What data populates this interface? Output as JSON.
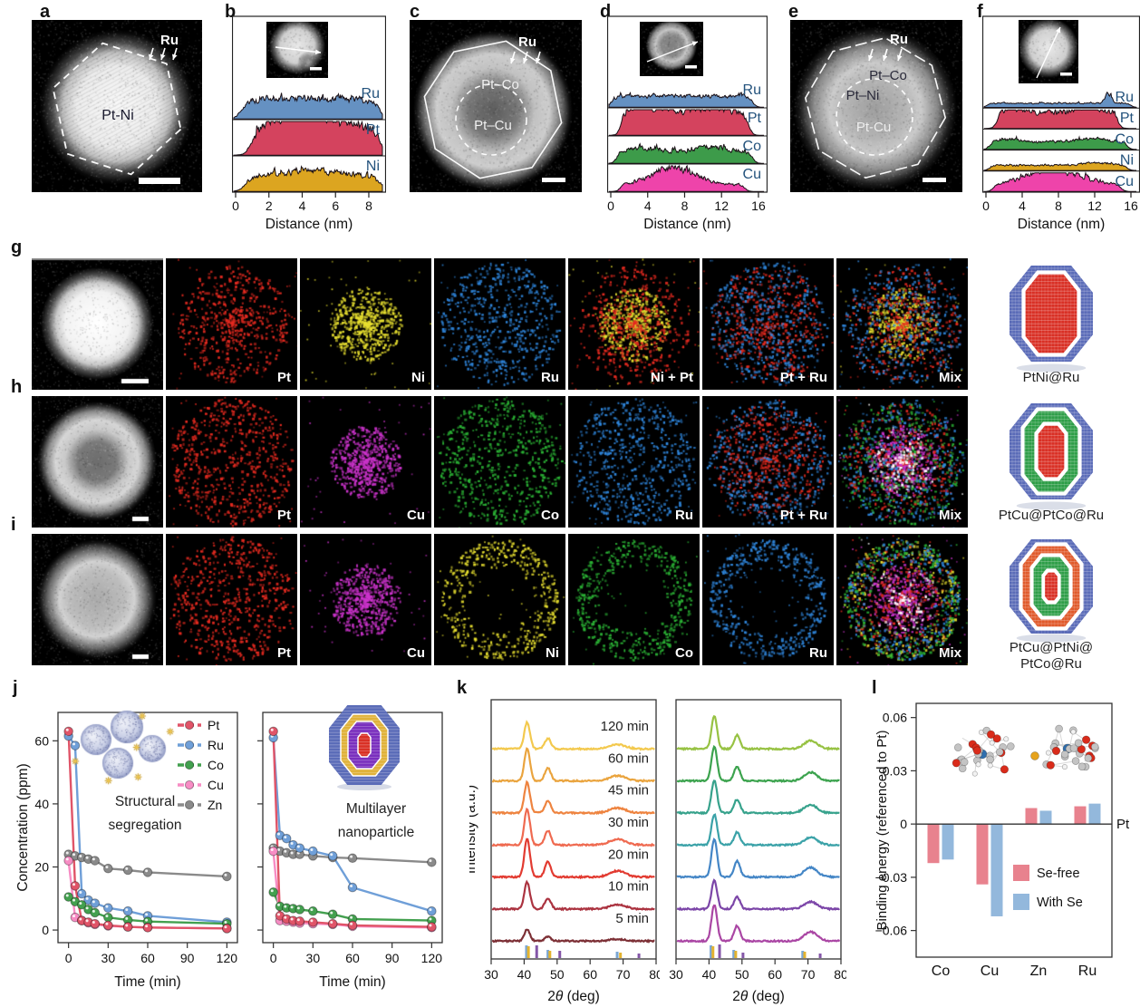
{
  "element_colors": {
    "Pt": "#e52a20",
    "Ni": "#e8e030",
    "Ru": "#2f86dc",
    "Cu": "#cc33cc",
    "Co": "#2bb335"
  },
  "colors": {
    "profile_label": "#23527c",
    "ref_blue": "#7ba7d4",
    "ref_yellow": "#e3b32f",
    "ref_purple": "#8456a8",
    "se_free": "#e8828e",
    "with_se": "#93b8dc"
  },
  "panels": {
    "a": {
      "letter": "a",
      "core_label": "Pt-Ni",
      "surface_label": "Ru"
    },
    "b": {
      "letter": "b"
    },
    "c": {
      "letter": "c",
      "shell_label": "Pt–Co",
      "core_label": "Pt–Cu",
      "surface_label": "Ru"
    },
    "d": {
      "letter": "d"
    },
    "e": {
      "letter": "e",
      "shell_label": "Pt–Co",
      "mid_label": "Pt–Ni",
      "core_label": "Pt-Cu",
      "surface_label": "Ru"
    },
    "f": {
      "letter": "f"
    },
    "g": {
      "letter": "g",
      "map_labels": [
        "Pt",
        "Ni",
        "Ru",
        "Ni + Pt",
        "Pt + Ru",
        "Mix"
      ],
      "model_label": "PtNi@Ru",
      "model_layers": [
        "#5b6cb8",
        "#ffffff",
        "#d93025"
      ]
    },
    "h": {
      "letter": "h",
      "map_labels": [
        "Pt",
        "Cu",
        "Co",
        "Ru",
        "Pt + Ru",
        "Mix"
      ],
      "model_label": "PtCu@PtCo@Ru",
      "model_layers": [
        "#5b6cb8",
        "#ffffff",
        "#2e9e48",
        "#ffffff",
        "#d93025"
      ]
    },
    "i": {
      "letter": "i",
      "map_labels": [
        "Pt",
        "Cu",
        "Ni",
        "Co",
        "Ru",
        "Mix"
      ],
      "model_label_line1": "PtCu@PtNi@",
      "model_label_line2": "PtCo@Ru",
      "model_layers": [
        "#5b6cb8",
        "#ffffff",
        "#e05a2b",
        "#ffffff",
        "#2e9e48",
        "#ffffff",
        "#d93025"
      ]
    },
    "j": {
      "letter": "j",
      "left_caption": "Structural segregation",
      "right_caption": "Multilayer nanoparticle",
      "right_inset_layers": [
        "#5b6cb8",
        "#e0b23a",
        "#7a2fbe",
        "#d93025"
      ]
    },
    "k": {
      "letter": "k"
    },
    "l": {
      "letter": "l"
    }
  },
  "chart_data": [
    {
      "id": "b",
      "type": "line-profile",
      "xlabel": "Distance (nm)",
      "xticks": [
        0,
        2,
        4,
        6,
        8
      ],
      "xmax": 8.6,
      "series": [
        {
          "name": "Ru",
          "color": "#6591c2",
          "env": {
            "x0": 0.5,
            "x1": 8.4,
            "base": 0.36,
            "humps": []
          }
        },
        {
          "name": "Pt",
          "color": "#d4435e",
          "env": {
            "x0": 1.1,
            "x1": 8.45,
            "base": 0.5,
            "humps": [
              [
                4.2,
                1.6,
                0.28
              ]
            ]
          }
        },
        {
          "name": "Ni",
          "color": "#dca520",
          "env": {
            "x0": 0.7,
            "x1": 8.5,
            "base": 0.26,
            "humps": [
              [
                4.5,
                2.0,
                0.12
              ]
            ]
          }
        }
      ]
    },
    {
      "id": "d",
      "type": "line-profile",
      "xlabel": "Distance (nm)",
      "xticks": [
        0,
        4,
        8,
        12,
        16
      ],
      "xmax": 16.2,
      "series": [
        {
          "name": "Ru",
          "color": "#6591c2",
          "env": {
            "x0": 0.3,
            "x1": 15.0,
            "base": 0.26,
            "humps": []
          }
        },
        {
          "name": "Pt",
          "color": "#d4435e",
          "env": {
            "x0": 1.3,
            "x1": 14.6,
            "base": 0.5,
            "humps": [
              [
                3.8,
                1.8,
                0.22
              ],
              [
                10.6,
                2.0,
                0.18
              ]
            ]
          }
        },
        {
          "name": "Co",
          "color": "#3d9b4a",
          "env": {
            "x0": 0.8,
            "x1": 15.0,
            "base": 0.26,
            "humps": [
              [
                3.8,
                1.5,
                0.1
              ],
              [
                10.8,
                1.8,
                0.12
              ]
            ]
          }
        },
        {
          "name": "Cu",
          "color": "#ee44aa",
          "env": {
            "x0": 1.2,
            "x1": 14.2,
            "base": 0.16,
            "humps": [
              [
                6.8,
                2.2,
                0.42
              ]
            ]
          }
        }
      ]
    },
    {
      "id": "f",
      "type": "line-profile",
      "xlabel": "Distance (nm)",
      "xticks": [
        0,
        4,
        8,
        12,
        16
      ],
      "xmax": 16.2,
      "series": [
        {
          "name": "Ru",
          "color": "#6591c2",
          "env": {
            "x0": 0.3,
            "x1": 15.6,
            "base": 0.13,
            "humps": [
              [
                13.2,
                0.35,
                0.3
              ]
            ]
          }
        },
        {
          "name": "Pt",
          "color": "#d4435e",
          "env": {
            "x0": 1.4,
            "x1": 14.2,
            "base": 0.48,
            "humps": [
              [
                3.4,
                1.4,
                0.18
              ],
              [
                11.0,
                1.6,
                0.18
              ]
            ]
          }
        },
        {
          "name": "Co",
          "color": "#3d9b4a",
          "env": {
            "x0": 0.6,
            "x1": 15.2,
            "base": 0.24,
            "humps": [
              [
                2.6,
                1.0,
                0.1
              ],
              [
                11.4,
                1.6,
                0.1
              ]
            ]
          }
        },
        {
          "name": "Ni",
          "color": "#dca520",
          "env": {
            "x0": 0.6,
            "x1": 15.2,
            "base": 0.16,
            "humps": [
              [
                11.8,
                1.5,
                0.08
              ]
            ]
          }
        },
        {
          "name": "Cu",
          "color": "#ee44aa",
          "env": {
            "x0": 1.0,
            "x1": 14.6,
            "base": 0.2,
            "humps": [
              [
                7.4,
                2.8,
                0.5
              ]
            ]
          }
        }
      ]
    },
    {
      "id": "j_left",
      "type": "line",
      "xlabel": "Time (min)",
      "ylabel": "Concentration (ppm)",
      "caption": "Structural segregation",
      "legend": true,
      "ytick_labels": true,
      "xticks": [
        0,
        30,
        60,
        90,
        120
      ],
      "yticks": [
        0,
        20,
        40,
        60
      ],
      "x": [
        0,
        5,
        10,
        15,
        20,
        30,
        45,
        60,
        120
      ],
      "series": [
        {
          "name": "Pt",
          "color": "#e05468",
          "values": [
            63,
            14,
            3,
            2.5,
            2,
            1.5,
            1,
            0.8,
            0.5
          ]
        },
        {
          "name": "Ru",
          "color": "#6f9fd8",
          "values": [
            61.5,
            58.5,
            11.5,
            9.5,
            8.5,
            7,
            6,
            4.5,
            2.5
          ]
        },
        {
          "name": "Co",
          "color": "#43a04f",
          "values": [
            10.5,
            9,
            8,
            6.5,
            5.5,
            4,
            3.2,
            2.7,
            2
          ]
        },
        {
          "name": "Cu",
          "color": "#f78cc4",
          "values": [
            22,
            4,
            3,
            2.3,
            1.8,
            1.3,
            1,
            0.8,
            0.5
          ]
        },
        {
          "name": "Zn",
          "color": "#8a8a8a",
          "values": [
            24,
            23.5,
            23,
            22.5,
            22,
            19.5,
            19,
            18.3,
            17
          ]
        }
      ]
    },
    {
      "id": "j_right",
      "type": "line",
      "xlabel": "Time (min)",
      "ylabel": "",
      "caption": "Multilayer nanoparticle",
      "legend": false,
      "ytick_labels": false,
      "xticks": [
        0,
        30,
        60,
        90,
        120
      ],
      "yticks": [
        0,
        20,
        40,
        60
      ],
      "x": [
        0,
        5,
        10,
        15,
        20,
        30,
        45,
        60,
        120
      ],
      "series": [
        {
          "name": "Pt",
          "color": "#e05468",
          "values": [
            63,
            4.5,
            3.5,
            3,
            2.8,
            2.5,
            2,
            1.5,
            1
          ]
        },
        {
          "name": "Ru",
          "color": "#6f9fd8",
          "values": [
            61,
            30,
            29,
            27,
            26,
            25,
            23.5,
            13.5,
            6
          ]
        },
        {
          "name": "Co",
          "color": "#43a04f",
          "values": [
            12,
            7.5,
            7,
            6.8,
            6.5,
            6,
            5,
            3.5,
            3
          ]
        },
        {
          "name": "Cu",
          "color": "#f78cc4",
          "values": [
            25,
            3,
            2.8,
            2.5,
            2.2,
            2,
            1.8,
            1.2,
            0.8
          ]
        },
        {
          "name": "Zn",
          "color": "#8a8a8a",
          "values": [
            26,
            25,
            24.5,
            24,
            24,
            23.5,
            23,
            22.8,
            21.5
          ]
        }
      ]
    },
    {
      "id": "k_left",
      "type": "xrd",
      "xlabel": "2θ (deg)",
      "ylabel": "Intensity (a.u.)",
      "show_labels": true,
      "xticks": [
        30,
        40,
        50,
        60,
        70,
        80
      ],
      "xrange": [
        30,
        80
      ],
      "peaks": [
        [
          40.9,
          0.85,
          1.0
        ],
        [
          47.2,
          0.9,
          0.4
        ],
        [
          68.3,
          2.4,
          0.16
        ]
      ],
      "traces": [
        {
          "label": "5 min",
          "color": "#7d3036",
          "amp": 0.3
        },
        {
          "label": "10 min",
          "color": "#ab3340",
          "amp": 0.7
        },
        {
          "label": "20 min",
          "color": "#e23b31",
          "amp": 1.0
        },
        {
          "label": "30 min",
          "color": "#ef6a50",
          "amp": 0.95
        },
        {
          "label": "45 min",
          "color": "#ee8440",
          "amp": 0.8
        },
        {
          "label": "60 min",
          "color": "#eaa43e",
          "amp": 0.85
        },
        {
          "label": "120 min",
          "color": "#f3c94e",
          "amp": 0.7
        }
      ],
      "ref_ticks": [
        [
          40.7,
          "blue",
          14
        ],
        [
          41.3,
          "yellow",
          13
        ],
        [
          43.8,
          "purple",
          14
        ],
        [
          47.2,
          "blue",
          9
        ],
        [
          47.8,
          "yellow",
          8
        ],
        [
          50.8,
          "purple",
          8
        ],
        [
          68.2,
          "blue",
          7
        ],
        [
          69.2,
          "yellow",
          6
        ],
        [
          74.8,
          "purple",
          5
        ]
      ]
    },
    {
      "id": "k_right",
      "type": "xrd",
      "xlabel": "2θ (deg)",
      "ylabel": "",
      "show_labels": false,
      "xticks": [
        30,
        40,
        50,
        60,
        70,
        80
      ],
      "xrange": [
        30,
        80
      ],
      "peaks": [
        [
          41.6,
          0.85,
          1.0
        ],
        [
          48.5,
          0.9,
          0.42
        ],
        [
          70.8,
          2.0,
          0.25
        ]
      ],
      "traces": [
        {
          "label": "",
          "color": "#aa46a4",
          "amp": 0.95
        },
        {
          "label": "",
          "color": "#7c46a8",
          "amp": 0.75
        },
        {
          "label": "",
          "color": "#4486c6",
          "amp": 1.0
        },
        {
          "label": "",
          "color": "#3ba2a8",
          "amp": 0.8
        },
        {
          "label": "",
          "color": "#37a28c",
          "amp": 0.85
        },
        {
          "label": "",
          "color": "#3ca34e",
          "amp": 0.9
        },
        {
          "label": "",
          "color": "#97c243",
          "amp": 0.85
        }
      ],
      "ref_ticks": [
        [
          40.6,
          "blue",
          14
        ],
        [
          41.2,
          "yellow",
          13
        ],
        [
          43.2,
          "purple",
          15
        ],
        [
          47.5,
          "blue",
          9
        ],
        [
          48.1,
          "yellow",
          8
        ],
        [
          50.3,
          "purple",
          6
        ],
        [
          68.4,
          "blue",
          8
        ],
        [
          69.0,
          "yellow",
          7
        ],
        [
          73.7,
          "purple",
          5
        ]
      ]
    },
    {
      "id": "l",
      "type": "bar",
      "ylabel": "Binding energy (referenced to Pt)",
      "baseline_label": "Pt",
      "categories": [
        "Co",
        "Cu",
        "Zn",
        "Ru"
      ],
      "yticks": [
        0.06,
        0.03,
        0,
        -0.03,
        -0.06
      ],
      "ylim": [
        -0.075,
        0.068
      ],
      "series": [
        {
          "name": "Se-free",
          "color": "#e8828e",
          "values": [
            -0.022,
            -0.034,
            0.009,
            0.01
          ]
        },
        {
          "name": "With Se",
          "color": "#93b8dc",
          "values": [
            -0.02,
            -0.052,
            0.0075,
            0.0115
          ]
        }
      ]
    }
  ]
}
